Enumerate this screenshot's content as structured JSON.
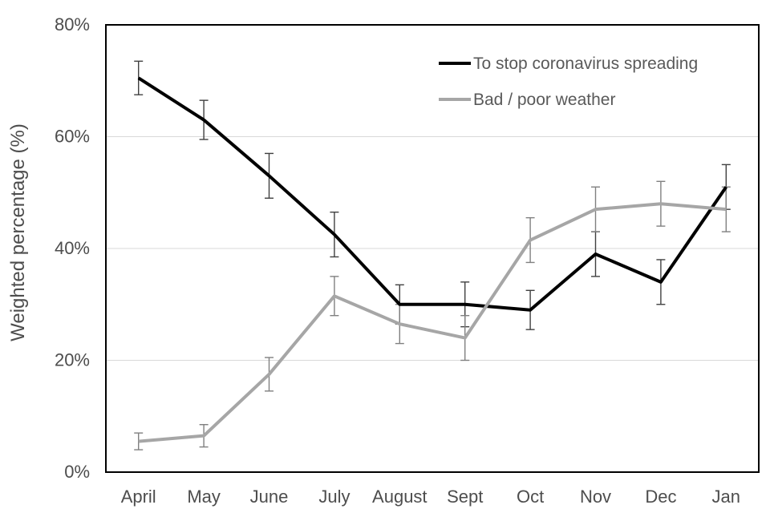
{
  "figure": {
    "background_color": "#ffffff",
    "plot_border_color": "#000000",
    "gridline_color": "#d9d9d9",
    "text_color": "#4d4d4d"
  },
  "chart_data": {
    "type": "line",
    "title": "",
    "xlabel": "",
    "ylabel": "Weighted percentage (%)",
    "ylim": [
      0,
      80
    ],
    "y_ticks": [
      {
        "label": "0%",
        "value": 0
      },
      {
        "label": "20%",
        "value": 20
      },
      {
        "label": "40%",
        "value": 40
      },
      {
        "label": "60%",
        "value": 60
      },
      {
        "label": "80%",
        "value": 80
      }
    ],
    "grid": "horizontal-only",
    "legend_position": "inside-top-right",
    "categories": [
      "April",
      "May",
      "June",
      "July",
      "August",
      "Sept",
      "Oct",
      "Nov",
      "Dec",
      "Jan"
    ],
    "series": [
      {
        "name": "To stop coronavirus spreading",
        "color": "#000000",
        "error_bar_color": "#404040",
        "values": [
          70.5,
          63,
          53,
          42.5,
          30,
          30,
          29,
          39,
          34,
          51
        ],
        "errors": [
          3,
          3.5,
          4,
          4,
          3.5,
          4,
          3.5,
          4,
          4,
          4
        ]
      },
      {
        "name": "Bad / poor weather",
        "color": "#a6a6a6",
        "error_bar_color": "#808080",
        "values": [
          5.5,
          6.5,
          17.5,
          31.5,
          26.5,
          24,
          41.5,
          47,
          48,
          47
        ],
        "errors": [
          1.5,
          2,
          3,
          3.5,
          3.5,
          4,
          4,
          4,
          4,
          4
        ]
      }
    ]
  }
}
